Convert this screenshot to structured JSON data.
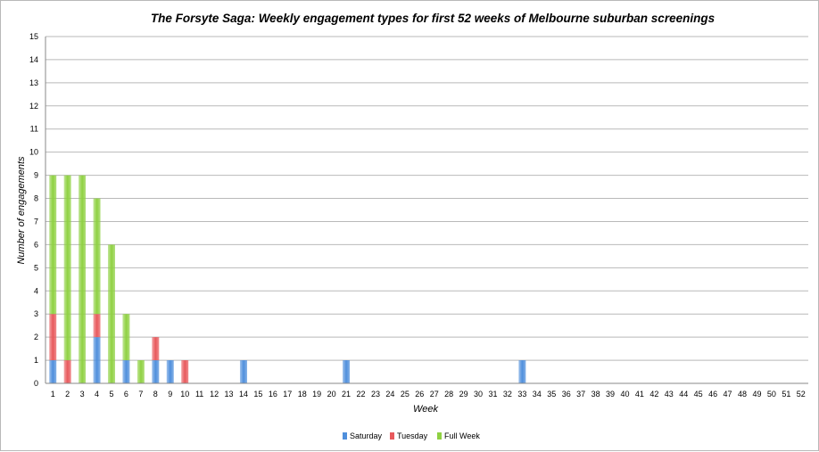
{
  "chart_data": {
    "type": "bar",
    "stacked": true,
    "title": "The Forsyte Saga: Weekly engagement types for first 52 weeks of Melbourne suburban screenings",
    "xlabel": "Week",
    "ylabel": "Number of engagements",
    "ylim": [
      0,
      15
    ],
    "yticks": [
      "0",
      "1",
      "2",
      "3",
      "4",
      "5",
      "6",
      "7",
      "8",
      "9",
      "10",
      "11",
      "12",
      "13",
      "14",
      "15"
    ],
    "grid": true,
    "legend_position": "bottom",
    "categories": [
      "1",
      "2",
      "3",
      "4",
      "5",
      "6",
      "7",
      "8",
      "9",
      "10",
      "11",
      "12",
      "13",
      "14",
      "15",
      "16",
      "17",
      "18",
      "19",
      "20",
      "21",
      "22",
      "23",
      "24",
      "25",
      "26",
      "27",
      "28",
      "29",
      "30",
      "31",
      "32",
      "33",
      "34",
      "35",
      "36",
      "37",
      "38",
      "39",
      "40",
      "41",
      "42",
      "43",
      "44",
      "45",
      "46",
      "47",
      "48",
      "49",
      "50",
      "51",
      "52"
    ],
    "series": [
      {
        "name": "Saturday",
        "color": "#4f8fdc",
        "values": [
          1,
          0,
          0,
          2,
          0,
          1,
          0,
          1,
          1,
          0,
          0,
          0,
          0,
          1,
          0,
          0,
          0,
          0,
          0,
          0,
          1,
          0,
          0,
          0,
          0,
          0,
          0,
          0,
          0,
          0,
          0,
          0,
          1,
          0,
          0,
          0,
          0,
          0,
          0,
          0,
          0,
          0,
          0,
          0,
          0,
          0,
          0,
          0,
          0,
          0,
          0,
          0
        ]
      },
      {
        "name": "Tuesday",
        "color": "#e8595c",
        "values": [
          2,
          1,
          0,
          1,
          0,
          0,
          0,
          1,
          0,
          1,
          0,
          0,
          0,
          0,
          0,
          0,
          0,
          0,
          0,
          0,
          0,
          0,
          0,
          0,
          0,
          0,
          0,
          0,
          0,
          0,
          0,
          0,
          0,
          0,
          0,
          0,
          0,
          0,
          0,
          0,
          0,
          0,
          0,
          0,
          0,
          0,
          0,
          0,
          0,
          0,
          0,
          0
        ]
      },
      {
        "name": "Full Week",
        "color": "#8fd142",
        "values": [
          6,
          8,
          9,
          5,
          6,
          2,
          1,
          0,
          0,
          0,
          0,
          0,
          0,
          0,
          0,
          0,
          0,
          0,
          0,
          0,
          0,
          0,
          0,
          0,
          0,
          0,
          0,
          0,
          0,
          0,
          0,
          0,
          0,
          0,
          0,
          0,
          0,
          0,
          0,
          0,
          0,
          0,
          0,
          0,
          0,
          0,
          0,
          0,
          0,
          0,
          0,
          0
        ]
      }
    ]
  }
}
